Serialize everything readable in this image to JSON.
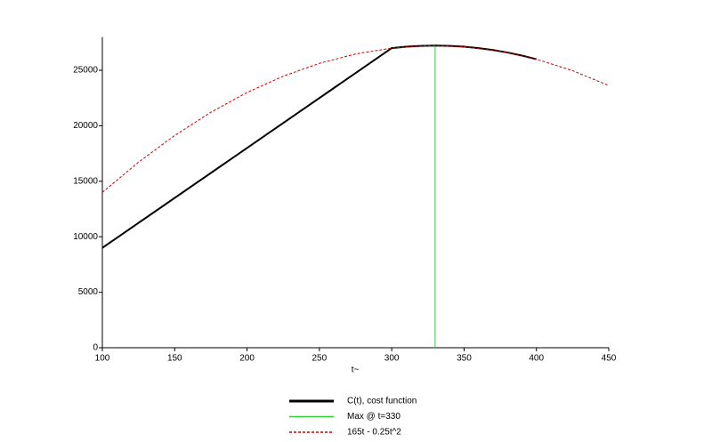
{
  "chart_data": {
    "type": "line",
    "x_label": "t~",
    "xlim": [
      100,
      450
    ],
    "xticks": [
      100,
      150,
      200,
      250,
      300,
      350,
      400,
      450
    ],
    "ylim": [
      0,
      28000
    ],
    "yticks": [
      0,
      5000,
      10000,
      15000,
      20000,
      25000
    ],
    "legend": "bottom",
    "series": [
      {
        "name": "C(t), cost function",
        "color": "#000000",
        "dash": false,
        "linewidth": 2,
        "x": [
          100,
          300,
          310,
          320,
          330,
          340,
          350,
          360,
          370,
          380,
          390,
          400
        ],
        "values": [
          9000,
          27000,
          27125,
          27200,
          27225,
          27200,
          27125,
          27000,
          26825,
          26600,
          26325,
          26000
        ]
      },
      {
        "name": "Max @ t=330",
        "color": "#33cc33",
        "dash": false,
        "linewidth": 1,
        "x": [
          330,
          330
        ],
        "values": [
          0,
          27225
        ]
      },
      {
        "name": "165t - 0.25t^2",
        "color": "#cc0000",
        "dash": true,
        "linewidth": 1,
        "x": [
          100,
          125,
          150,
          175,
          200,
          225,
          250,
          275,
          300,
          325,
          350,
          375,
          400,
          425,
          450
        ],
        "values": [
          14000,
          16718.75,
          19125,
          21218.75,
          23000,
          24468.75,
          25625,
          26468.75,
          27000,
          27218.75,
          27125,
          26718.75,
          26000,
          24968.75,
          23625
        ]
      }
    ]
  }
}
